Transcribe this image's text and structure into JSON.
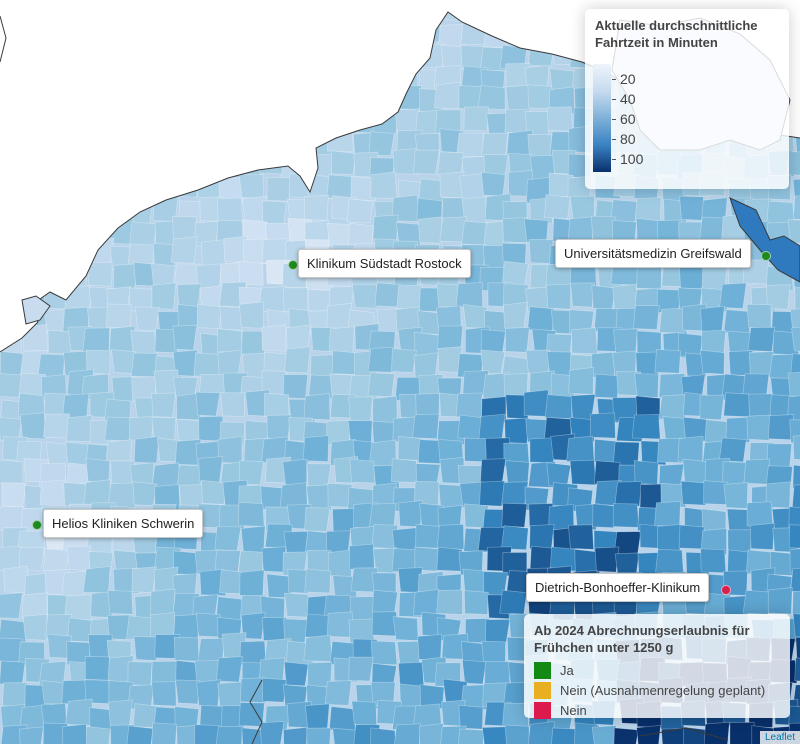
{
  "colors": {
    "sea": "#ffffff",
    "border_line": "#3a3a3a",
    "ramp": [
      "#eef4fb",
      "#c6dbef",
      "#9ecae1",
      "#6baed6",
      "#3182bd",
      "#08306b"
    ],
    "marker_ja": "#1f8a1f",
    "marker_nein": "#d62050"
  },
  "hospitals": [
    {
      "name": "Klinikum Südstadt Rostock",
      "status": "ja"
    },
    {
      "name": "Universitätsmedizin Greifswald",
      "status": "ja"
    },
    {
      "name": "Helios Kliniken Schwerin",
      "status": "ja"
    },
    {
      "name": "Dietrich-Bonhoeffer-Klinikum",
      "status": "nein"
    }
  ],
  "legend_traveltime": {
    "title": "Aktuelle durchschnittliche Fahrtzeit in Minuten",
    "ticks": [
      "20",
      "40",
      "60",
      "80",
      "100"
    ]
  },
  "legend_billing": {
    "title": "Ab 2024 Abrechnungserlaubnis für Frühchen unter 1250 g",
    "items": [
      {
        "label": "Ja",
        "color": "#138a13"
      },
      {
        "label": "Nein (Ausnahmenregelung geplant)",
        "color": "#e8b020"
      },
      {
        "label": "Nein",
        "color": "#dc1a4c"
      }
    ]
  },
  "attribution": "Leaflet"
}
